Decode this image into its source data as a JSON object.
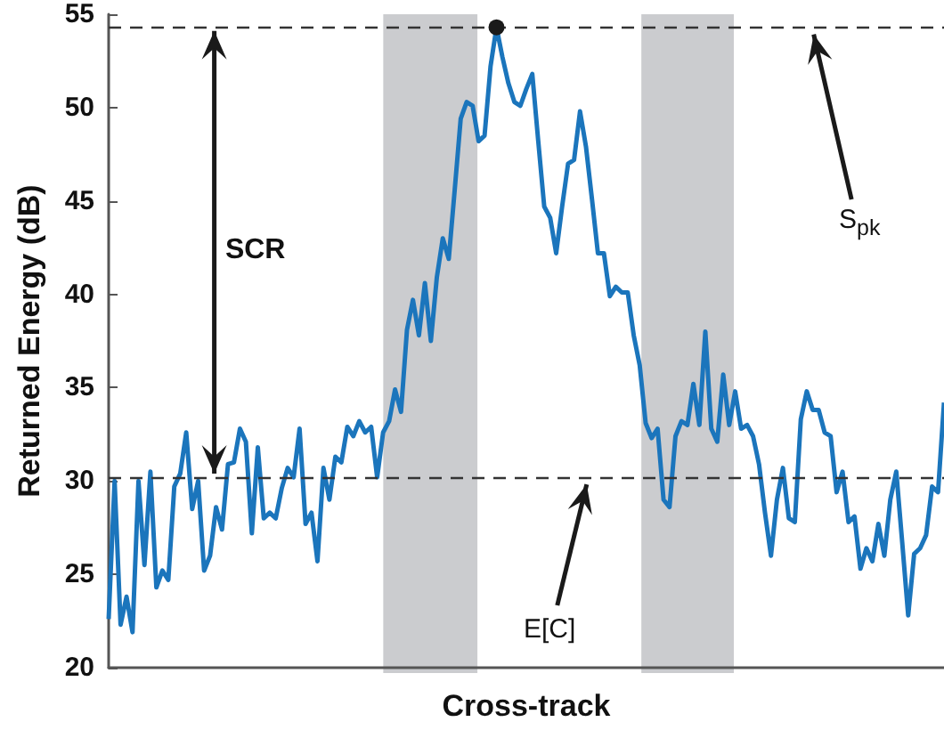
{
  "chart_data": {
    "type": "line",
    "xlabel": "Cross-track",
    "ylabel": "Returned Energy (dB)",
    "categories": [
      null,
      null,
      null,
      null,
      null,
      null,
      null,
      null,
      null,
      null,
      null,
      null,
      null,
      null,
      null,
      null,
      null,
      null,
      null,
      null,
      null,
      null,
      null,
      null,
      null,
      null,
      null,
      null,
      null,
      null,
      null,
      null,
      null,
      null,
      null,
      null,
      null,
      null,
      null,
      null,
      null,
      null,
      null,
      null,
      null,
      null,
      null,
      null,
      null,
      null,
      null,
      null,
      null,
      null,
      null,
      null,
      null,
      null,
      null,
      null,
      null,
      null,
      null,
      null,
      null,
      null,
      null,
      null,
      null,
      null,
      null,
      null,
      null,
      null,
      null,
      null,
      null,
      null,
      null,
      null,
      null,
      null,
      null,
      null,
      null,
      null,
      null,
      null,
      null,
      null,
      null,
      null,
      null,
      null,
      null,
      null,
      null,
      null,
      null,
      null,
      null,
      null,
      null,
      null,
      null,
      null,
      null,
      null,
      null,
      null,
      null,
      null,
      null,
      null,
      null,
      null,
      null,
      null,
      null,
      null,
      null,
      null,
      null,
      null,
      null,
      null,
      null,
      null,
      null,
      null,
      null,
      null,
      null,
      null,
      null,
      null,
      null,
      null,
      null,
      null,
      null
    ],
    "series": [
      {
        "color": "#1b75bc",
        "values": [
          22.6,
          30.0,
          22.3,
          23.8,
          21.9,
          30.0,
          25.5,
          30.5,
          24.3,
          25.2,
          24.7,
          29.7,
          30.4,
          32.6,
          28.5,
          30.0,
          25.2,
          26.0,
          28.6,
          27.4,
          30.9,
          31.0,
          32.8,
          32.1,
          27.2,
          31.8,
          28.0,
          28.3,
          28.0,
          29.6,
          30.7,
          30.2,
          32.8,
          27.7,
          28.3,
          25.7,
          30.7,
          29.0,
          31.3,
          31.0,
          32.9,
          32.4,
          33.2,
          32.6,
          32.9,
          30.2,
          32.6,
          33.2,
          34.9,
          33.7,
          38.1,
          39.7,
          37.8,
          40.6,
          37.5,
          40.9,
          43.0,
          41.9,
          45.6,
          49.4,
          50.3,
          50.1,
          48.2,
          48.5,
          52.2,
          54.3,
          52.7,
          51.3,
          50.3,
          50.1,
          51.0,
          51.8,
          48.2,
          44.7,
          44.1,
          42.2,
          44.7,
          47.0,
          47.2,
          49.8,
          47.9,
          45.1,
          42.2,
          42.2,
          39.9,
          40.4,
          40.1,
          40.1,
          37.8,
          36.2,
          33.1,
          32.3,
          32.8,
          29.0,
          28.6,
          32.4,
          33.2,
          33.0,
          35.2,
          33.0,
          38.0,
          32.8,
          32.1,
          35.7,
          33.0,
          34.8,
          32.8,
          33.0,
          32.4,
          30.9,
          28.3,
          26.0,
          29.0,
          30.7,
          28.0,
          27.8,
          33.3,
          34.8,
          33.8,
          33.8,
          32.6,
          32.4,
          29.4,
          30.5,
          27.8,
          28.1,
          25.3,
          26.4,
          25.7,
          27.7,
          26.0,
          29.0,
          30.5,
          26.7,
          22.8,
          26.1,
          26.4,
          27.1,
          29.7,
          29.4,
          34.2
        ]
      }
    ],
    "marker": "none",
    "ylim": [
      20,
      55
    ],
    "yticks": [
      20,
      25,
      30,
      35,
      40,
      45,
      50,
      55
    ],
    "tick_labels": "y",
    "grid": false,
    "ref_lines": [
      {
        "axis": "y",
        "value": 54.3,
        "label": "S$_{pk}$",
        "color": "#333333",
        "line_style": "dashed"
      },
      {
        "axis": "y",
        "value": 30.2,
        "label": "E[C]",
        "color": "#333333",
        "line_style": "dashed"
      }
    ],
    "annotations": [
      "SCR"
    ]
  }
}
